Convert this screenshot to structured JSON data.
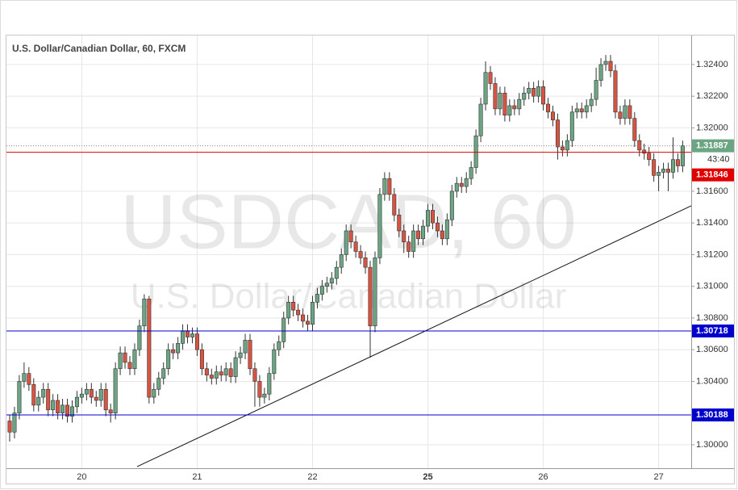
{
  "chart_data": {
    "type": "candlestick",
    "title": "U.S. Dollar/Canadian Dollar, 60, FXCM",
    "watermark": "USDCAD, 60",
    "watermark_subtitle": "U.S. Dollar/Canadian Dollar",
    "categories": [
      null,
      null,
      null,
      null,
      null,
      null,
      null,
      null,
      null,
      null,
      null,
      null,
      null,
      null,
      null,
      "20",
      null,
      null,
      null,
      null,
      null,
      null,
      null,
      null,
      null,
      null,
      null,
      null,
      null,
      null,
      null,
      null,
      null,
      null,
      null,
      null,
      null,
      null,
      null,
      "21",
      null,
      null,
      null,
      null,
      null,
      null,
      null,
      null,
      null,
      null,
      null,
      null,
      null,
      null,
      null,
      null,
      null,
      null,
      null,
      null,
      null,
      null,
      null,
      "22",
      null,
      null,
      null,
      null,
      null,
      null,
      null,
      null,
      null,
      null,
      null,
      null,
      null,
      null,
      null,
      null,
      null,
      null,
      null,
      null,
      null,
      null,
      null,
      "25",
      null,
      null,
      null,
      null,
      null,
      null,
      null,
      null,
      null,
      null,
      null,
      null,
      null,
      null,
      null,
      null,
      null,
      null,
      null,
      null,
      null,
      null,
      null,
      "26",
      null,
      null,
      null,
      null,
      null,
      null,
      null,
      null,
      null,
      null,
      null,
      null,
      null,
      null,
      null,
      null,
      null,
      null,
      null,
      null,
      null,
      null,
      null,
      "27",
      null,
      null,
      null,
      null,
      null
    ],
    "open": [
      1.3015,
      1.3008,
      1.302,
      1.304,
      1.3045,
      1.3038,
      1.3025,
      1.303,
      1.3035,
      1.3022,
      1.3028,
      1.302,
      1.3025,
      1.3018,
      1.3024,
      1.303,
      1.3032,
      1.3035,
      1.303,
      1.3028,
      1.3035,
      1.3022,
      1.302,
      1.3048,
      1.3058,
      1.3052,
      1.3048,
      1.306,
      1.3075,
      1.3092,
      1.303,
      1.3035,
      1.3042,
      1.3048,
      1.306,
      1.3058,
      1.3064,
      1.3072,
      1.3068,
      1.307,
      1.306,
      1.3048,
      1.3044,
      1.3042,
      1.3046,
      1.3044,
      1.3048,
      1.3043,
      1.3055,
      1.3058,
      1.3066,
      1.3048,
      1.304,
      1.303,
      1.3032,
      1.3045,
      1.306,
      1.3065,
      1.308,
      1.309,
      1.3085,
      1.3082,
      1.3078,
      1.3076,
      1.309,
      1.3095,
      1.31,
      1.3102,
      1.3105,
      1.3112,
      1.312,
      1.3135,
      1.3128,
      1.3122,
      1.3118,
      1.3112,
      1.3075,
      1.3118,
      1.3158,
      1.3168,
      1.3158,
      1.3145,
      1.3135,
      1.3128,
      1.3122,
      1.3135,
      1.313,
      1.3138,
      1.3148,
      1.314,
      1.3135,
      1.313,
      1.3142,
      1.316,
      1.3165,
      1.3163,
      1.3168,
      1.3175,
      1.3195,
      1.3215,
      1.3235,
      1.3228,
      1.3212,
      1.3222,
      1.3208,
      1.3214,
      1.3212,
      1.3218,
      1.3222,
      1.3225,
      1.322,
      1.3226,
      1.3215,
      1.321,
      1.3205,
      1.3188,
      1.3186,
      1.3192,
      1.321,
      1.3212,
      1.321,
      1.3214,
      1.3218,
      1.323,
      1.324,
      1.3242,
      1.3236,
      1.321,
      1.3206,
      1.3214,
      1.3206,
      1.3192,
      1.3186,
      1.3184,
      1.318,
      1.317,
      1.3172,
      1.3174,
      1.3172,
      1.318,
      1.3176
    ],
    "high": [
      1.3019,
      1.3024,
      1.3044,
      1.3052,
      1.3049,
      1.3042,
      1.3034,
      1.3039,
      1.3039,
      1.3032,
      1.3032,
      1.3029,
      1.3029,
      1.3028,
      1.3034,
      1.3036,
      1.3039,
      1.3039,
      1.3034,
      1.3039,
      1.3039,
      1.3026,
      1.3052,
      1.3062,
      1.3062,
      1.3056,
      1.3064,
      1.3079,
      1.3095,
      1.3094,
      1.3039,
      1.3046,
      1.3052,
      1.3064,
      1.3064,
      1.3068,
      1.3076,
      1.3076,
      1.3074,
      1.3074,
      1.3064,
      1.3052,
      1.3048,
      1.305,
      1.305,
      1.3052,
      1.3052,
      1.3059,
      1.3062,
      1.307,
      1.307,
      1.3052,
      1.3044,
      1.3036,
      1.3049,
      1.3064,
      1.3069,
      1.3084,
      1.3094,
      1.3094,
      1.3089,
      1.3086,
      1.3082,
      1.3094,
      1.3099,
      1.3104,
      1.3106,
      1.3109,
      1.3116,
      1.3124,
      1.3139,
      1.3139,
      1.3132,
      1.3126,
      1.3122,
      1.3116,
      1.3122,
      1.3162,
      1.3172,
      1.3172,
      1.3162,
      1.3149,
      1.3139,
      1.3132,
      1.3139,
      1.3139,
      1.3142,
      1.3152,
      1.3152,
      1.3144,
      1.3139,
      1.3146,
      1.3164,
      1.3169,
      1.3169,
      1.3172,
      1.3179,
      1.3199,
      1.3219,
      1.3242,
      1.3239,
      1.3232,
      1.3226,
      1.3226,
      1.3218,
      1.3218,
      1.3222,
      1.3226,
      1.3229,
      1.3229,
      1.323,
      1.323,
      1.3219,
      1.3214,
      1.3209,
      1.3192,
      1.3196,
      1.3214,
      1.3216,
      1.3216,
      1.3218,
      1.3222,
      1.3238,
      1.3244,
      1.3246,
      1.3246,
      1.324,
      1.3214,
      1.3218,
      1.3218,
      1.321,
      1.3196,
      1.319,
      1.3188,
      1.3184,
      1.3176,
      1.3178,
      1.3178,
      1.3194,
      1.3184,
      1.3192
    ],
    "low": [
      1.3002,
      1.3004,
      1.3016,
      1.3036,
      1.3034,
      1.3021,
      1.3021,
      1.3026,
      1.3018,
      1.3018,
      1.3016,
      1.3016,
      1.3014,
      1.3014,
      1.302,
      1.3026,
      1.3028,
      1.3026,
      1.3024,
      1.3024,
      1.3018,
      1.3014,
      1.3016,
      1.3044,
      1.3048,
      1.3044,
      1.3044,
      1.3056,
      1.3071,
      1.3026,
      1.3026,
      1.3031,
      1.3038,
      1.3044,
      1.3054,
      1.3054,
      1.306,
      1.3064,
      1.3064,
      1.3056,
      1.3044,
      1.304,
      1.3038,
      1.3038,
      1.304,
      1.304,
      1.3039,
      1.3039,
      1.3051,
      1.3054,
      1.3044,
      1.3024,
      1.3024,
      1.3026,
      1.3028,
      1.3041,
      1.3056,
      1.3061,
      1.3076,
      1.3081,
      1.3078,
      1.3074,
      1.3072,
      1.3072,
      1.3086,
      1.3091,
      1.3096,
      1.3098,
      1.3101,
      1.3108,
      1.3116,
      1.3124,
      1.3118,
      1.3114,
      1.3108,
      1.3055,
      1.3071,
      1.3114,
      1.3154,
      1.3154,
      1.3141,
      1.3131,
      1.3121,
      1.3118,
      1.3118,
      1.3126,
      1.3126,
      1.3134,
      1.3136,
      1.3131,
      1.3126,
      1.3126,
      1.3138,
      1.3156,
      1.3159,
      1.3159,
      1.3164,
      1.3171,
      1.3191,
      1.3211,
      1.3224,
      1.3208,
      1.3208,
      1.3204,
      1.3204,
      1.3208,
      1.3208,
      1.3214,
      1.3218,
      1.3216,
      1.3216,
      1.3211,
      1.3206,
      1.3201,
      1.318,
      1.3182,
      1.3182,
      1.3188,
      1.3206,
      1.3206,
      1.3206,
      1.321,
      1.3214,
      1.3226,
      1.3236,
      1.3232,
      1.3206,
      1.3202,
      1.3202,
      1.3202,
      1.3188,
      1.3182,
      1.318,
      1.3176,
      1.3166,
      1.316,
      1.3168,
      1.316,
      1.3168,
      1.3172,
      1.3172
    ],
    "close": [
      1.3008,
      1.302,
      1.304,
      1.3045,
      1.3038,
      1.3025,
      1.303,
      1.3035,
      1.3022,
      1.3028,
      1.302,
      1.3025,
      1.3018,
      1.3024,
      1.303,
      1.3032,
      1.3035,
      1.303,
      1.3028,
      1.3035,
      1.3022,
      1.302,
      1.3048,
      1.3058,
      1.3052,
      1.3048,
      1.306,
      1.3075,
      1.3092,
      1.303,
      1.3035,
      1.3042,
      1.3048,
      1.306,
      1.3058,
      1.3064,
      1.3072,
      1.3068,
      1.307,
      1.306,
      1.3048,
      1.3044,
      1.3042,
      1.3046,
      1.3044,
      1.3048,
      1.3043,
      1.3055,
      1.3058,
      1.3066,
      1.3048,
      1.304,
      1.303,
      1.3032,
      1.3045,
      1.306,
      1.3065,
      1.308,
      1.309,
      1.3085,
      1.3082,
      1.3078,
      1.3076,
      1.309,
      1.3095,
      1.31,
      1.3102,
      1.3105,
      1.3112,
      1.312,
      1.3135,
      1.3128,
      1.3122,
      1.3118,
      1.3112,
      1.3075,
      1.3118,
      1.3158,
      1.3168,
      1.3158,
      1.3145,
      1.3135,
      1.3128,
      1.3122,
      1.3135,
      1.313,
      1.3138,
      1.3148,
      1.314,
      1.3135,
      1.313,
      1.3142,
      1.316,
      1.3165,
      1.3163,
      1.3168,
      1.3175,
      1.3195,
      1.3215,
      1.3235,
      1.3228,
      1.3212,
      1.3222,
      1.3208,
      1.3214,
      1.3212,
      1.3218,
      1.3222,
      1.3225,
      1.322,
      1.3226,
      1.3215,
      1.321,
      1.3205,
      1.3188,
      1.3186,
      1.3192,
      1.321,
      1.3212,
      1.321,
      1.3214,
      1.3218,
      1.323,
      1.324,
      1.3242,
      1.3236,
      1.321,
      1.3206,
      1.3214,
      1.3206,
      1.3192,
      1.3186,
      1.3184,
      1.318,
      1.317,
      1.3172,
      1.3174,
      1.3172,
      1.318,
      1.3176,
      1.31887
    ],
    "up_color": "#6ba583",
    "down_color": "#d75442",
    "ylim": [
      1.29852,
      1.32583
    ],
    "yticks": [
      {
        "value": 1.3,
        "label": "1.30000"
      },
      {
        "value": 1.304,
        "label": "1.30400"
      },
      {
        "value": 1.306,
        "label": "1.30600"
      },
      {
        "value": 1.308,
        "label": "1.30800"
      },
      {
        "value": 1.31,
        "label": "1.31000"
      },
      {
        "value": 1.312,
        "label": "1.31200"
      },
      {
        "value": 1.314,
        "label": "1.31400"
      },
      {
        "value": 1.316,
        "label": "1.31600"
      },
      {
        "value": 1.32,
        "label": "1.32000"
      },
      {
        "value": 1.322,
        "label": "1.32200"
      },
      {
        "value": 1.324,
        "label": "1.32400"
      }
    ],
    "grid": true,
    "levels": [
      {
        "value": 1.31846,
        "label": "1.31846",
        "color": "#e00000"
      },
      {
        "value": 1.30718,
        "label": "1.30718",
        "color": "#0000cc"
      },
      {
        "value": 1.30188,
        "label": "1.30188",
        "color": "#0000cc"
      }
    ],
    "last_price": {
      "value": 1.31887,
      "label": "1.31887",
      "color": "#6ba583"
    },
    "countdown": "43:40",
    "trendline": {
      "x": [
        26.5,
        141.8
      ],
      "y": [
        1.29862,
        1.31508
      ]
    }
  }
}
